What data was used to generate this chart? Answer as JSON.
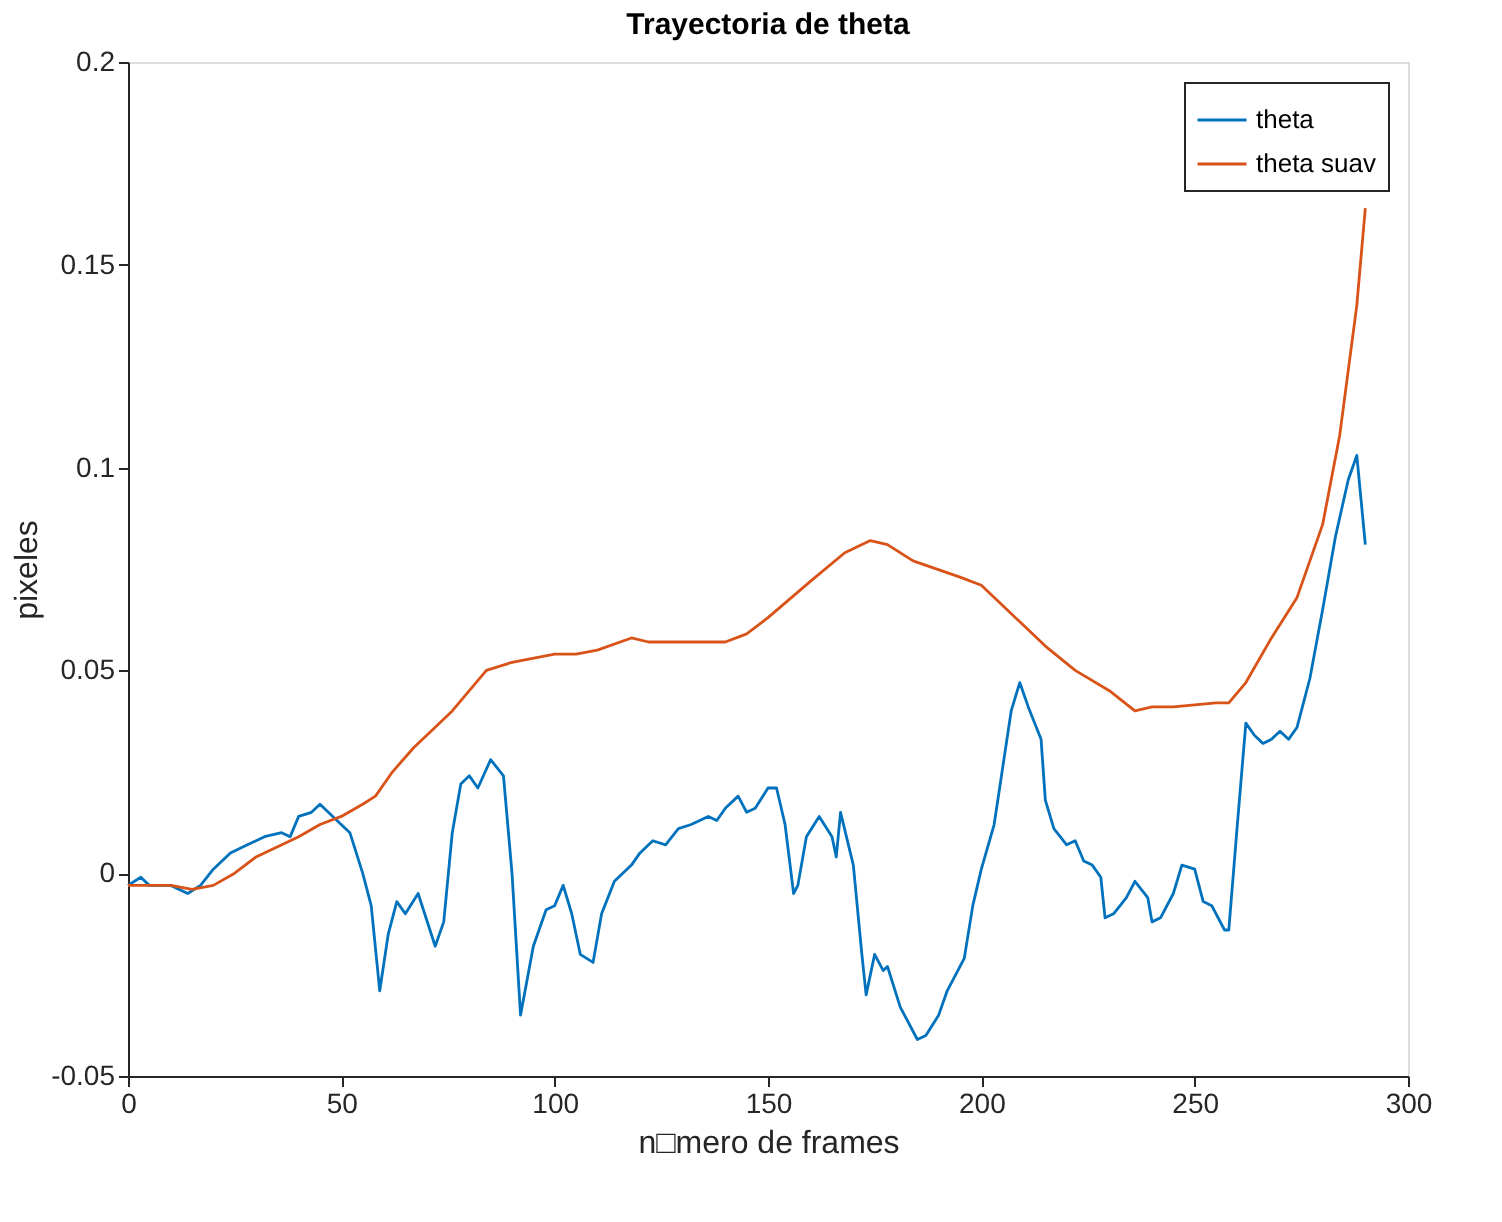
{
  "chart_data": {
    "type": "line",
    "title": "Trayectoria de theta",
    "xlabel": "n□mero de frames",
    "ylabel": "pixeles",
    "xlim": [
      0,
      300
    ],
    "xticks": [
      0,
      50,
      100,
      150,
      200,
      250,
      300
    ],
    "ylim": [
      -0.05,
      0.2
    ],
    "yticks": [
      -0.05,
      0,
      0.05,
      0.1,
      0.15,
      0.2
    ],
    "grid": false,
    "legend": "top right",
    "line_style": "solid",
    "marker": "none",
    "series": [
      {
        "name": "theta",
        "color": "#0072bd",
        "x": [
          0,
          3,
          5,
          10,
          14,
          17,
          20,
          24,
          28,
          32,
          36,
          38,
          40,
          43,
          45,
          48,
          52,
          55,
          57,
          59,
          61,
          63,
          65,
          68,
          72,
          74,
          76,
          78,
          80,
          82,
          85,
          88,
          90,
          92,
          95,
          98,
          100,
          102,
          104,
          106,
          109,
          111,
          114,
          118,
          120,
          123,
          126,
          129,
          132,
          136,
          138,
          140,
          143,
          145,
          147,
          150,
          152,
          154,
          156,
          157,
          159,
          162,
          165,
          166,
          167,
          170,
          172,
          173,
          175,
          177,
          178,
          181,
          185,
          187,
          190,
          192,
          194,
          196,
          198,
          200,
          203,
          205,
          207,
          209,
          211,
          214,
          215,
          217,
          220,
          222,
          224,
          226,
          228,
          229,
          231,
          234,
          236,
          239,
          240,
          242,
          245,
          247,
          250,
          252,
          254,
          257,
          258,
          260,
          262,
          264,
          266,
          268,
          270,
          272,
          274,
          277,
          280,
          283,
          286,
          288,
          290
        ],
        "values": [
          -0.003,
          -0.001,
          -0.003,
          -0.003,
          -0.005,
          -0.003,
          0.001,
          0.005,
          0.007,
          0.009,
          0.01,
          0.009,
          0.014,
          0.015,
          0.017,
          0.014,
          0.01,
          0.0,
          -0.008,
          -0.029,
          -0.015,
          -0.007,
          -0.01,
          -0.005,
          -0.018,
          -0.012,
          0.01,
          0.022,
          0.024,
          0.021,
          0.028,
          0.024,
          0.0,
          -0.035,
          -0.018,
          -0.009,
          -0.008,
          -0.003,
          -0.01,
          -0.02,
          -0.022,
          -0.01,
          -0.002,
          0.002,
          0.005,
          0.008,
          0.007,
          0.011,
          0.012,
          0.014,
          0.013,
          0.016,
          0.019,
          0.015,
          0.016,
          0.021,
          0.021,
          0.012,
          -0.005,
          -0.003,
          0.009,
          0.014,
          0.009,
          0.004,
          0.015,
          0.002,
          -0.02,
          -0.03,
          -0.02,
          -0.024,
          -0.023,
          -0.033,
          -0.041,
          -0.04,
          -0.035,
          -0.029,
          -0.025,
          -0.021,
          -0.008,
          0.001,
          0.012,
          0.026,
          0.04,
          0.047,
          0.041,
          0.033,
          0.018,
          0.011,
          0.007,
          0.008,
          0.003,
          0.002,
          -0.001,
          -0.011,
          -0.01,
          -0.006,
          -0.002,
          -0.006,
          -0.012,
          -0.011,
          -0.005,
          0.002,
          0.001,
          -0.007,
          -0.008,
          -0.014,
          -0.014,
          0.012,
          0.037,
          0.034,
          0.032,
          0.033,
          0.035,
          0.033,
          0.036,
          0.048,
          0.065,
          0.083,
          0.097,
          0.103,
          0.081
        ]
      },
      {
        "name": "theta suav",
        "color": "#d95319",
        "x": [
          0,
          10,
          15,
          20,
          25,
          30,
          40,
          45,
          50,
          55,
          58,
          62,
          67,
          72,
          76,
          80,
          84,
          90,
          100,
          105,
          110,
          118,
          122,
          130,
          140,
          145,
          150,
          160,
          168,
          174,
          178,
          184,
          195,
          200,
          205,
          210,
          215,
          222,
          230,
          236,
          240,
          245,
          255,
          258,
          262,
          268,
          274,
          280,
          284,
          288,
          290
        ],
        "values": [
          -0.003,
          -0.003,
          -0.004,
          -0.003,
          0.0,
          0.004,
          0.009,
          0.012,
          0.014,
          0.017,
          0.019,
          0.025,
          0.031,
          0.036,
          0.04,
          0.045,
          0.05,
          0.052,
          0.054,
          0.054,
          0.055,
          0.058,
          0.057,
          0.057,
          0.057,
          0.059,
          0.063,
          0.072,
          0.079,
          0.082,
          0.081,
          0.077,
          0.073,
          0.071,
          0.066,
          0.061,
          0.056,
          0.05,
          0.045,
          0.04,
          0.041,
          0.041,
          0.042,
          0.042,
          0.047,
          0.058,
          0.068,
          0.086,
          0.108,
          0.14,
          0.164
        ]
      }
    ]
  }
}
